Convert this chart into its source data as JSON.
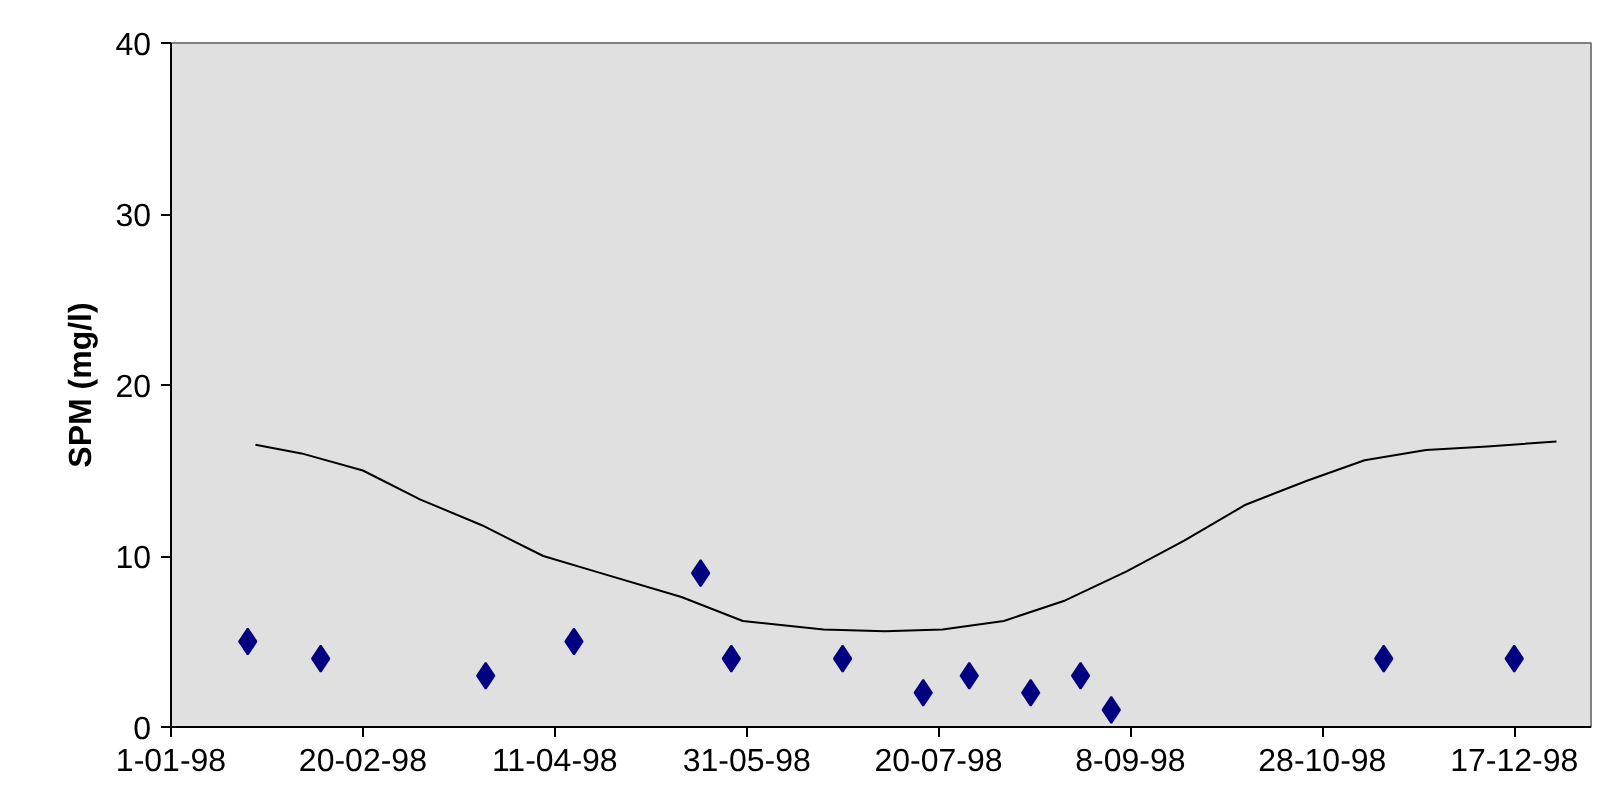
{
  "chart_data": {
    "type": "scatter",
    "ylabel": "SPM (mg/l)",
    "xlim": [
      "1998-01-01",
      "1999-01-06"
    ],
    "ylim": [
      0,
      40
    ],
    "yticks": [
      0,
      10,
      20,
      30,
      40
    ],
    "xticks": [
      {
        "value": "1998-01-01",
        "label": "1-01-98"
      },
      {
        "value": "1998-02-20",
        "label": "20-02-98"
      },
      {
        "value": "1998-04-11",
        "label": "11-04-98"
      },
      {
        "value": "1998-05-31",
        "label": "31-05-98"
      },
      {
        "value": "1998-07-20",
        "label": "20-07-98"
      },
      {
        "value": "1998-09-08",
        "label": "8-09-98"
      },
      {
        "value": "1998-10-28",
        "label": "28-10-98"
      },
      {
        "value": "1998-12-17",
        "label": "17-12-98"
      }
    ],
    "grid": false,
    "series": [
      {
        "marker": "diamond",
        "color": "#000080",
        "x": [
          "1998-01-21",
          "1998-02-09",
          "1998-03-24",
          "1998-04-16",
          "1998-05-19",
          "1998-05-27",
          "1998-06-25",
          "1998-07-16",
          "1998-07-28",
          "1998-08-13",
          "1998-08-26",
          "1998-09-03",
          "1998-11-13",
          "1998-12-17"
        ],
        "values": [
          5,
          4,
          3,
          5,
          9,
          4,
          4,
          2,
          3,
          2,
          3,
          1,
          4,
          4
        ]
      },
      {
        "type": "line",
        "marker": "none",
        "line_style": "solid",
        "color": "#000000",
        "x": [
          "1998-01-23",
          "1998-02-04",
          "1998-02-20",
          "1998-03-07",
          "1998-03-23",
          "1998-04-08",
          "1998-04-23",
          "1998-05-14",
          "1998-05-30",
          "1998-06-20",
          "1998-07-06",
          "1998-07-21",
          "1998-08-06",
          "1998-08-22",
          "1998-09-07",
          "1998-09-22",
          "1998-10-08",
          "1998-10-24",
          "1998-11-08",
          "1998-11-24",
          "1998-12-10",
          "1998-12-28"
        ],
        "values": [
          16.5,
          16.0,
          15.0,
          13.3,
          11.8,
          10.0,
          9.0,
          7.6,
          6.2,
          5.7,
          5.6,
          5.7,
          6.2,
          7.4,
          9.1,
          10.9,
          13.0,
          14.4,
          15.6,
          16.2,
          16.4,
          16.7
        ]
      }
    ]
  }
}
